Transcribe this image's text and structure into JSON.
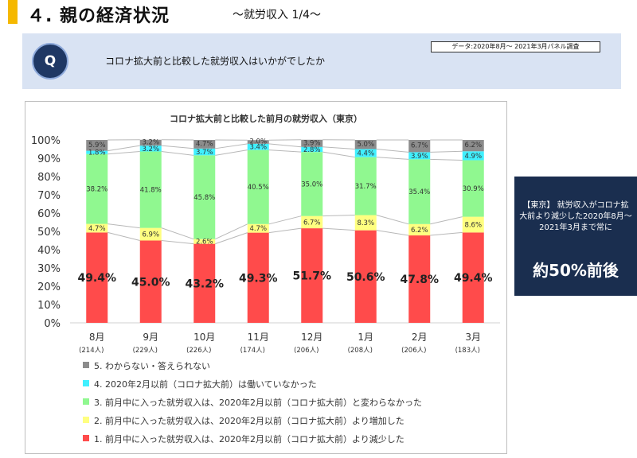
{
  "header": {
    "title": "４. 親の経済状況",
    "subtitle": "～就労収入 1/4～"
  },
  "question_panel": {
    "source_note": "データ:2020年8月～ 2021年3月パネル調査",
    "q_label": "Q",
    "question": "コロナ拡大前と比較した就労収入はいかがでしたか"
  },
  "callout": {
    "text": "【東京】 就労収入がコロナ拡大前より減少した2020年8月～2021年3月まで常に",
    "highlight": "約50%前後"
  },
  "chart_data": {
    "type": "bar",
    "stacked": true,
    "title": "コロナ拡大前と比較した前月の就労収入（東京）",
    "categories": [
      "8月",
      "9月",
      "10月",
      "11月",
      "12月",
      "1月",
      "2月",
      "3月"
    ],
    "sample_sizes": [
      "(214人)",
      "(229人)",
      "(226人)",
      "(174人)",
      "(206人)",
      "(208人)",
      "(206人)",
      "(183人)"
    ],
    "y_ticks": [
      "0%",
      "10%",
      "20%",
      "30%",
      "40%",
      "50%",
      "60%",
      "70%",
      "80%",
      "90%",
      "100%"
    ],
    "ylim": [
      0,
      100
    ],
    "series": [
      {
        "name": "1. 前月中に入った就労収入は、2020年2月以前（コロナ拡大前）より減少した",
        "color": "#ff4b4b",
        "values": [
          49.4,
          45.0,
          43.2,
          49.3,
          51.7,
          50.6,
          47.8,
          49.4
        ],
        "labels": [
          "49.4%",
          "45.0%",
          "43.2%",
          "49.3%",
          "51.7%",
          "50.6%",
          "47.8%",
          "49.4%"
        ]
      },
      {
        "name": "2. 前月中に入った就労収入は、2020年2月以前（コロナ拡大前）より増加した",
        "color": "#ffff80",
        "values": [
          4.7,
          6.9,
          2.6,
          4.7,
          6.7,
          8.3,
          6.2,
          8.6
        ],
        "labels": [
          "4.7%",
          "6.9%",
          "2.6%",
          "4.7%",
          "6.7%",
          "8.3%",
          "6.2%",
          "8.6%"
        ]
      },
      {
        "name": "3. 前月中に入った就労収入は、2020年2月以前（コロナ拡大前）と変わらなかった",
        "color": "#90f890",
        "values": [
          38.2,
          41.8,
          45.8,
          40.5,
          35.0,
          31.7,
          35.4,
          30.9
        ],
        "labels": [
          "38.2%",
          "41.8%",
          "45.8%",
          "40.5%",
          "35.0%",
          "31.7%",
          "35.4%",
          "30.9%"
        ]
      },
      {
        "name": "4. 2020年2月以前（コロナ拡大前）は働いていなかった",
        "color": "#40f0ff",
        "values": [
          1.8,
          3.2,
          3.7,
          3.4,
          2.8,
          4.4,
          3.9,
          4.9
        ],
        "labels": [
          "1.8%",
          "3.2%",
          "3.7%",
          "3.4%",
          "2.8%",
          "4.4%",
          "3.9%",
          "4.9%"
        ]
      },
      {
        "name": "5. わからない・答えられない",
        "color": "#8c8c8c",
        "values": [
          5.9,
          3.2,
          4.7,
          2.0,
          3.9,
          5.0,
          6.7,
          6.2
        ],
        "labels": [
          "5.9%",
          "3.2%",
          "4.7%",
          "2.0%",
          "3.9%",
          "5.0%",
          "6.7%",
          "6.2%"
        ]
      }
    ],
    "legend_order": [
      4,
      3,
      2,
      1,
      0
    ],
    "legend_position": "bottom",
    "grid": false,
    "connector_lines": true
  }
}
